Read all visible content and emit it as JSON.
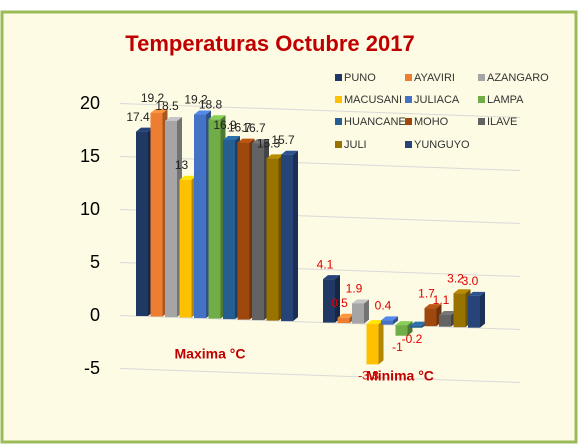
{
  "chart_data": {
    "type": "bar3d",
    "title": "Temperaturas Octubre 2017",
    "categories": [
      "Maxima °C",
      "Minima °C"
    ],
    "ylim": [
      -5,
      20
    ],
    "yticks": [
      -5,
      0,
      5,
      10,
      15,
      20
    ],
    "grid": true,
    "legend": "top-right",
    "series": [
      {
        "name": "PUNO",
        "color": "#1f3864",
        "values": [
          17.4,
          4.1
        ],
        "value_labels": [
          "17.4",
          "4.1"
        ]
      },
      {
        "name": "AYAVIRI",
        "color": "#ed7d31",
        "values": [
          19.2,
          0.5
        ],
        "value_labels": [
          "19.2",
          "0.5"
        ]
      },
      {
        "name": "AZANGARO",
        "color": "#a5a5a5",
        "values": [
          18.5,
          1.9
        ],
        "value_labels": [
          "18.5",
          "1.9"
        ]
      },
      {
        "name": "MACUSANI",
        "color": "#ffc000",
        "values": [
          13,
          -3.8
        ],
        "value_labels": [
          "13",
          "-3.8"
        ]
      },
      {
        "name": "JULIACA",
        "color": "#4472c4",
        "values": [
          19.2,
          0.4
        ],
        "value_labels": [
          "19.2",
          "0.4"
        ]
      },
      {
        "name": "LAMPA",
        "color": "#70ad47",
        "values": [
          18.8,
          -1
        ],
        "value_labels": [
          "18.8",
          "-1"
        ]
      },
      {
        "name": "HUANCANE",
        "color": "#255e91",
        "values": [
          16.9,
          -0.2
        ],
        "value_labels": [
          "16.9",
          "-0.2"
        ]
      },
      {
        "name": "MOHO",
        "color": "#9e480e",
        "values": [
          16.7,
          1.7
        ],
        "value_labels": [
          "16.7",
          "1.7"
        ]
      },
      {
        "name": "ILAVE",
        "color": "#636363",
        "values": [
          16.7,
          1.1
        ],
        "value_labels": [
          "16.7",
          "1.1"
        ]
      },
      {
        "name": "JULI",
        "color": "#997300",
        "values": [
          15.3,
          3.2
        ],
        "value_labels": [
          "15.3",
          "3.2"
        ]
      },
      {
        "name": "YUNGUYO",
        "color": "#264478",
        "values": [
          15.7,
          3.0
        ],
        "value_labels": [
          "15.7",
          "3.0"
        ]
      }
    ]
  }
}
